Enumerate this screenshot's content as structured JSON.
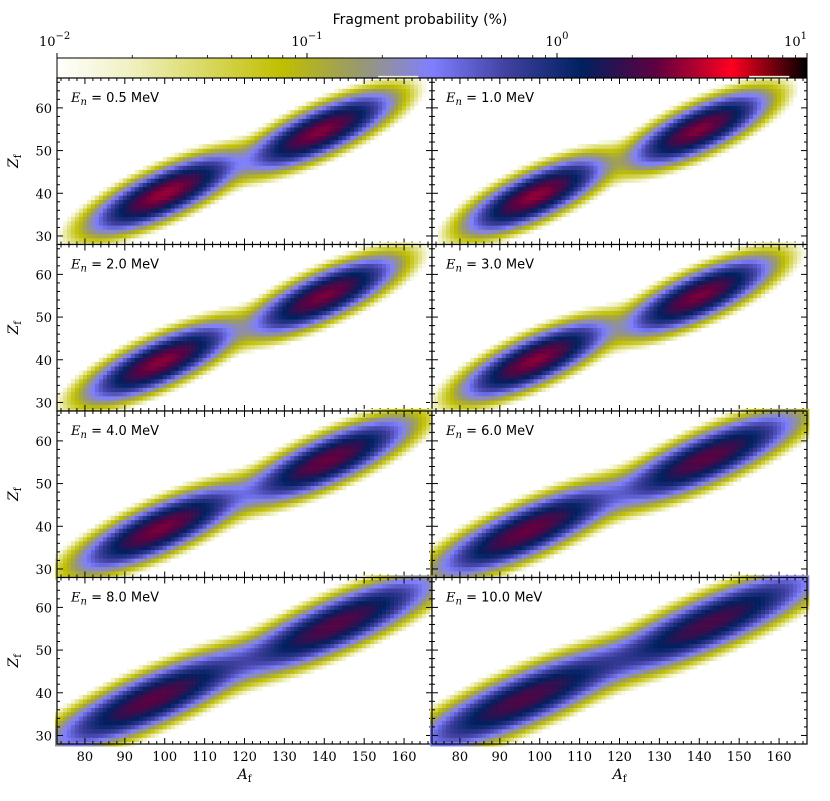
{
  "chart_data": {
    "type": "heatmap",
    "colorbar": {
      "title": "Fragment probability (%)",
      "scale": "log",
      "range": [
        0.01,
        10
      ],
      "tick_labels": [
        {
          "value": 0.01,
          "base": "10",
          "exp": "−2"
        },
        {
          "value": 0.1,
          "base": "10",
          "exp": "−1"
        },
        {
          "value": 1,
          "base": "10",
          "exp": "0"
        },
        {
          "value": 10,
          "base": "10",
          "exp": "1"
        }
      ],
      "stops": [
        "#ffffff",
        "#f0f0c0",
        "#d8d860",
        "#bfbf00",
        "#9a9a6a",
        "#7f7fff",
        "#4040a0",
        "#002060",
        "#600040",
        "#ff0020",
        "#000000"
      ]
    },
    "xlabel": "A",
    "xlabel_sub": "f",
    "ylabel": "Z",
    "ylabel_sub": "f",
    "xlim": [
      73,
      167
    ],
    "ylim": [
      28,
      67
    ],
    "xticks": [
      80,
      90,
      100,
      110,
      120,
      130,
      140,
      150,
      160
    ],
    "yticks": [
      30,
      40,
      50,
      60
    ],
    "panels": [
      {
        "label_var": "E",
        "label_sub": "n",
        "label_rest": " = 0.5 MeV",
        "peaks": [
          {
            "A": 100,
            "Z": 40,
            "sA": 8,
            "sZ": 2.5,
            "amp": 3.2,
            "cutoff": 0.012
          },
          {
            "A": 139,
            "Z": 54.5,
            "sA": 8,
            "sZ": 2.5,
            "amp": 2.9,
            "cutoff": 0.012
          }
        ]
      },
      {
        "label_var": "E",
        "label_sub": "n",
        "label_rest": " = 1.0 MeV",
        "peaks": [
          {
            "A": 99,
            "Z": 39.5,
            "sA": 7.5,
            "sZ": 2.5,
            "amp": 3.1,
            "cutoff": 0.012
          },
          {
            "A": 140,
            "Z": 55,
            "sA": 7.5,
            "sZ": 2.5,
            "amp": 2.9,
            "cutoff": 0.012
          }
        ]
      },
      {
        "label_var": "E",
        "label_sub": "n",
        "label_rest": " = 2.0 MeV",
        "peaks": [
          {
            "A": 99,
            "Z": 39.5,
            "sA": 8,
            "sZ": 2.5,
            "amp": 3,
            "cutoff": 0.012
          },
          {
            "A": 140,
            "Z": 55,
            "sA": 8,
            "sZ": 2.5,
            "amp": 2.8,
            "cutoff": 0.012
          }
        ]
      },
      {
        "label_var": "E",
        "label_sub": "n",
        "label_rest": " = 3.0 MeV",
        "peaks": [
          {
            "A": 99,
            "Z": 40,
            "sA": 8,
            "sZ": 2.5,
            "amp": 3,
            "cutoff": 0.012
          },
          {
            "A": 140,
            "Z": 55,
            "sA": 8,
            "sZ": 2.5,
            "amp": 2.8,
            "cutoff": 0.012
          }
        ]
      },
      {
        "label_var": "E",
        "label_sub": "n",
        "label_rest": " = 4.0 MeV",
        "peaks": [
          {
            "A": 99,
            "Z": 39.5,
            "sA": 9,
            "sZ": 2.6,
            "amp": 2.8,
            "cutoff": 0.012
          },
          {
            "A": 141,
            "Z": 55.5,
            "sA": 9,
            "sZ": 2.6,
            "amp": 2.6,
            "cutoff": 0.012
          },
          {
            "A": 120,
            "Z": 47.5,
            "sA": 10,
            "sZ": 2,
            "amp": 0.04,
            "cutoff": 0.012
          }
        ]
      },
      {
        "label_var": "E",
        "label_sub": "n",
        "label_rest": " = 6.0 MeV",
        "peaks": [
          {
            "A": 97,
            "Z": 39,
            "sA": 10,
            "sZ": 2.7,
            "amp": 2.6,
            "cutoff": 0.012
          },
          {
            "A": 142,
            "Z": 56,
            "sA": 10,
            "sZ": 2.7,
            "amp": 2.4,
            "cutoff": 0.012
          },
          {
            "A": 120,
            "Z": 47.5,
            "sA": 11,
            "sZ": 2.2,
            "amp": 0.07,
            "cutoff": 0.012
          }
        ]
      },
      {
        "label_var": "E",
        "label_sub": "n",
        "label_rest": " = 8.0 MeV",
        "peaks": [
          {
            "A": 97,
            "Z": 38.5,
            "sA": 11,
            "sZ": 2.8,
            "amp": 2.4,
            "cutoff": 0.012
          },
          {
            "A": 143,
            "Z": 56,
            "sA": 11,
            "sZ": 2.8,
            "amp": 2.3,
            "cutoff": 0.012
          },
          {
            "A": 120,
            "Z": 47.5,
            "sA": 12,
            "sZ": 2.3,
            "amp": 0.09,
            "cutoff": 0.012
          }
        ]
      },
      {
        "label_var": "E",
        "label_sub": "n",
        "label_rest": " = 10.0 MeV",
        "peaks": [
          {
            "A": 96,
            "Z": 38.5,
            "sA": 12,
            "sZ": 2.9,
            "amp": 2.2,
            "cutoff": 0.012
          },
          {
            "A": 143,
            "Z": 56.5,
            "sA": 12,
            "sZ": 2.9,
            "amp": 2.1,
            "cutoff": 0.012
          },
          {
            "A": 120,
            "Z": 47.5,
            "sA": 12,
            "sZ": 2.4,
            "amp": 0.12,
            "cutoff": 0.012
          }
        ]
      }
    ]
  }
}
